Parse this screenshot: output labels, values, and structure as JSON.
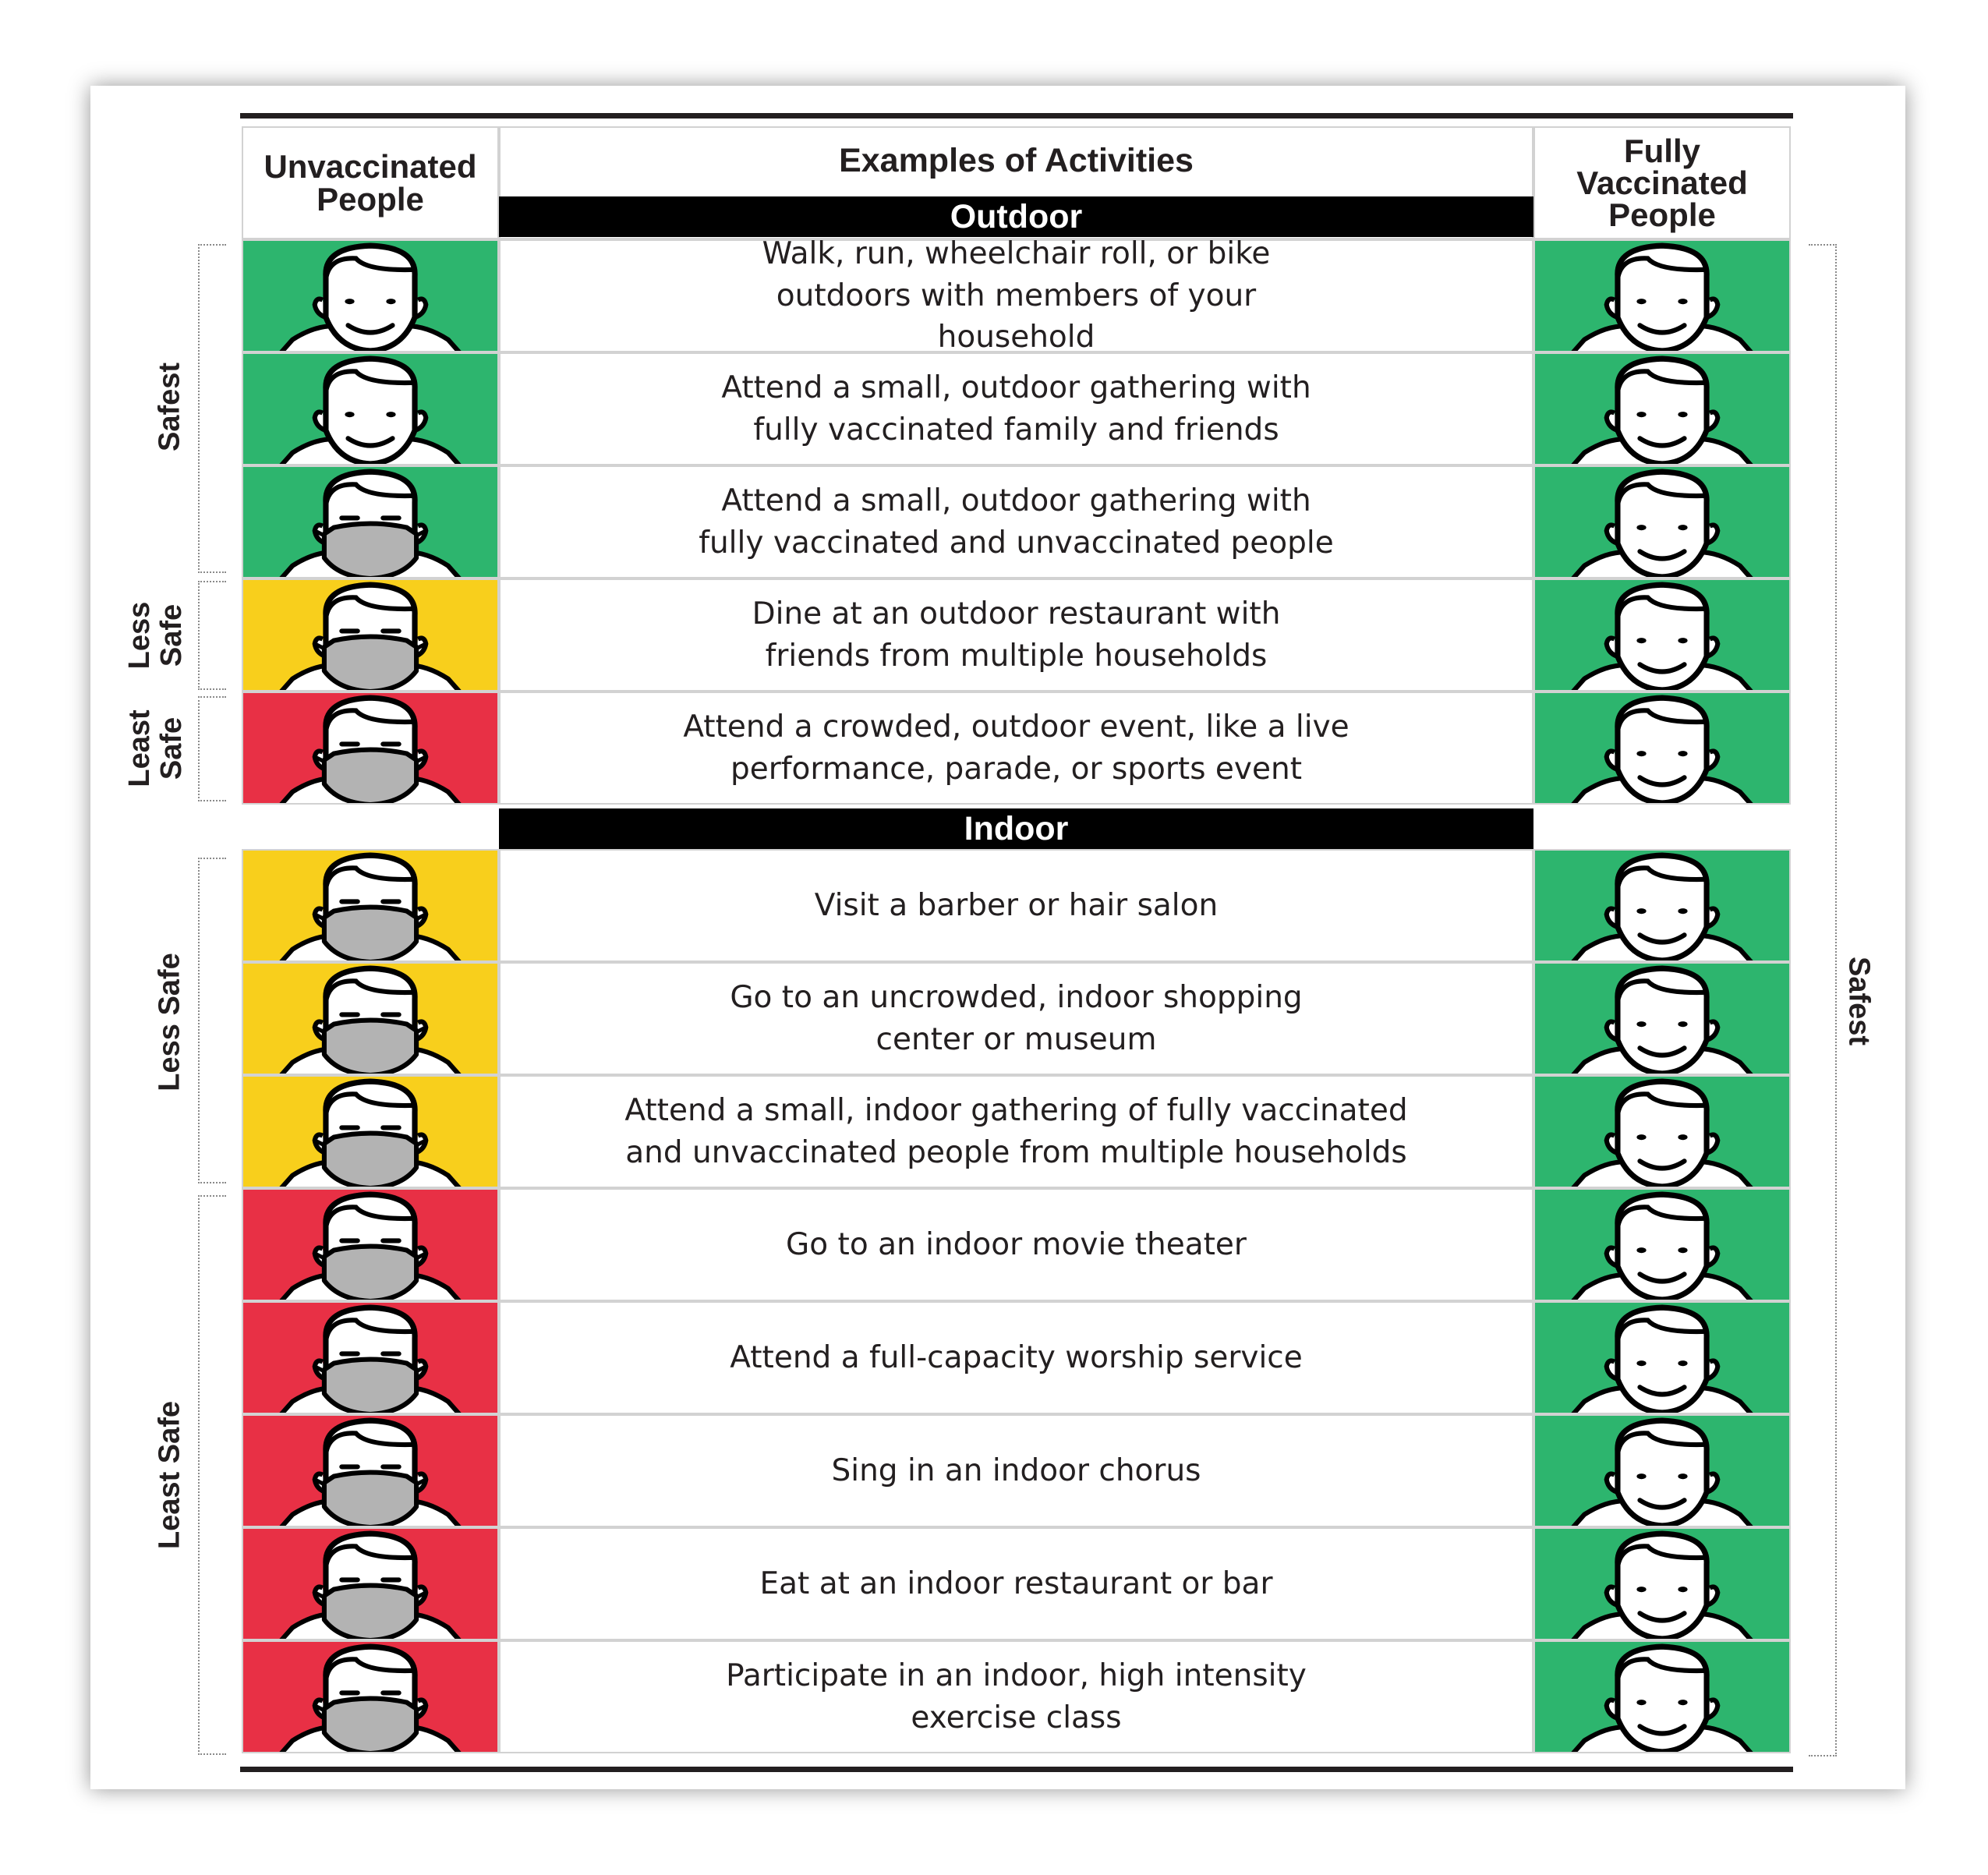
{
  "header": {
    "left": "Unvaccinated People",
    "middle": "Examples of Activities",
    "right": "Fully Vaccinated People"
  },
  "sections": {
    "outdoor": "Outdoor",
    "indoor": "Indoor"
  },
  "colors": {
    "safest": "#2db56e",
    "less_safe": "#f8cf1c",
    "least_safe": "#e83045",
    "mask": "#b3b3b3",
    "bar": "#000000"
  },
  "outdoor_rows": [
    {
      "activity": "Walk, run, wheelchair roll, or bike outdoors with members of your household",
      "unvaccinated": "safest",
      "unvaccinated_mask": false,
      "vaccinated": "safest"
    },
    {
      "activity": "Attend a small, outdoor gathering with fully vaccinated family and friends",
      "unvaccinated": "safest",
      "unvaccinated_mask": false,
      "vaccinated": "safest"
    },
    {
      "activity": "Attend a small, outdoor gathering with fully vaccinated and unvaccinated people",
      "unvaccinated": "safest",
      "unvaccinated_mask": true,
      "vaccinated": "safest"
    },
    {
      "activity": "Dine at an outdoor restaurant with friends from multiple households",
      "unvaccinated": "less_safe",
      "unvaccinated_mask": true,
      "vaccinated": "safest"
    },
    {
      "activity": "Attend a crowded, outdoor event, like a live performance, parade, or sports event",
      "unvaccinated": "least_safe",
      "unvaccinated_mask": true,
      "vaccinated": "safest"
    }
  ],
  "indoor_rows": [
    {
      "activity": "Visit a barber or hair salon",
      "unvaccinated": "less_safe",
      "unvaccinated_mask": true,
      "vaccinated": "safest"
    },
    {
      "activity": "Go to an uncrowded, indoor shopping center or museum",
      "unvaccinated": "less_safe",
      "unvaccinated_mask": true,
      "vaccinated": "safest"
    },
    {
      "activity": "Attend a small, indoor gathering of fully vaccinated and unvaccinated people from multiple households",
      "unvaccinated": "less_safe",
      "unvaccinated_mask": true,
      "vaccinated": "safest"
    },
    {
      "activity": "Go to an indoor movie theater",
      "unvaccinated": "least_safe",
      "unvaccinated_mask": true,
      "vaccinated": "safest"
    },
    {
      "activity": "Attend a full-capacity worship service",
      "unvaccinated": "least_safe",
      "unvaccinated_mask": true,
      "vaccinated": "safest"
    },
    {
      "activity": "Sing in an indoor chorus",
      "unvaccinated": "least_safe",
      "unvaccinated_mask": true,
      "vaccinated": "safest"
    },
    {
      "activity": "Eat at an indoor restaurant or bar",
      "unvaccinated": "least_safe",
      "unvaccinated_mask": true,
      "vaccinated": "safest"
    },
    {
      "activity": "Participate in an indoor, high intensity exercise class",
      "unvaccinated": "least_safe",
      "unvaccinated_mask": true,
      "vaccinated": "safest"
    }
  ],
  "side_labels": {
    "outdoor_safest": "Safest",
    "outdoor_less_safe": "Less Safe",
    "outdoor_least_safe": "Least Safe",
    "indoor_less_safe": "Less Safe",
    "indoor_least_safe": "Least Safe",
    "vaccinated_safest": "Safest"
  }
}
